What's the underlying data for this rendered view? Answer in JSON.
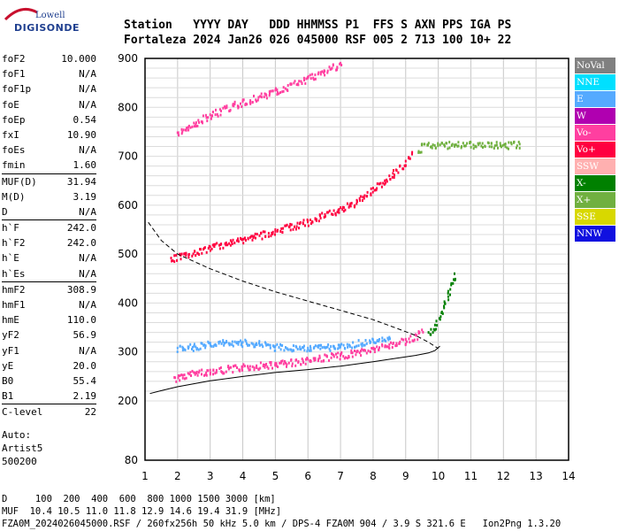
{
  "logo": {
    "line1": "Lowell",
    "line2": "DIGISONDE"
  },
  "header": {
    "row1": "Station   YYYY DAY   DDD HHMMSS P1  FFS S AXN PPS IGA PS",
    "row2": "Fortaleza 2024 Jan26 026 045000 RSF 005 2 713 100 10+ 22"
  },
  "params": [
    {
      "label": "foF2",
      "value": "10.000"
    },
    {
      "label": "foF1",
      "value": "N/A"
    },
    {
      "label": "foF1p",
      "value": "N/A"
    },
    {
      "label": "foE",
      "value": "N/A"
    },
    {
      "label": "foEp",
      "value": "0.54"
    },
    {
      "label": "fxI",
      "value": "10.90"
    },
    {
      "label": "foEs",
      "value": "N/A"
    },
    {
      "label": "fmin",
      "value": "1.60"
    },
    {
      "label": "MUF(D)",
      "value": "31.94"
    },
    {
      "label": "M(D)",
      "value": "3.19"
    },
    {
      "label": "D",
      "value": "N/A"
    },
    {
      "label": "h`F",
      "value": "242.0"
    },
    {
      "label": "h`F2",
      "value": "242.0"
    },
    {
      "label": "h`E",
      "value": "N/A"
    },
    {
      "label": "h`Es",
      "value": "N/A"
    },
    {
      "label": "hmF2",
      "value": "308.9"
    },
    {
      "label": "hmF1",
      "value": "N/A"
    },
    {
      "label": "hmE",
      "value": "110.0"
    },
    {
      "label": "yF2",
      "value": "56.9"
    },
    {
      "label": "yF1",
      "value": "N/A"
    },
    {
      "label": "yE",
      "value": "20.0"
    },
    {
      "label": "B0",
      "value": "55.4"
    },
    {
      "label": "B1",
      "value": "2.19"
    },
    {
      "label": "C-level",
      "value": "22"
    }
  ],
  "auto": {
    "line1": "Auto:",
    "line2": "Artist5",
    "line3": "500200"
  },
  "legend": [
    {
      "label": "NoVal",
      "color": "#808080"
    },
    {
      "label": "NNE",
      "color": "#00e0ff"
    },
    {
      "label": "E",
      "color": "#55aaff"
    },
    {
      "label": "W",
      "color": "#b000b0"
    },
    {
      "label": "Vo-",
      "color": "#ff3fa0"
    },
    {
      "label": "Vo+",
      "color": "#ff0040"
    },
    {
      "label": "SSW",
      "color": "#ffb0b0"
    },
    {
      "label": "X-",
      "color": "#008000"
    },
    {
      "label": "X+",
      "color": "#70b040"
    },
    {
      "label": "SSE",
      "color": "#d8d800"
    },
    {
      "label": "NNW",
      "color": "#1010e0"
    }
  ],
  "bottom": {
    "line1": "D     100  200  400  600  800 1000 1500 3000 [km]",
    "line2": "MUF  10.4 10.5 11.0 11.8 12.9 14.6 19.4 31.9 [MHz]",
    "line3": "FZA0M_2024026045000.RSF / 260fx256h 50 kHz 5.0 km / DPS-4 FZA0M 904 / 3.9 S 321.6 E   Ion2Png 1.3.20"
  },
  "chart_data": {
    "type": "scatter",
    "xlim": [
      1,
      14
    ],
    "ylim": [
      80,
      900
    ],
    "x_ticks": [
      "1",
      "2",
      "3",
      "4",
      "5",
      "6",
      "7",
      "8",
      "9",
      "10",
      "11",
      "12",
      "13",
      "14"
    ],
    "y_ticks": [
      "80",
      "200",
      "300",
      "400",
      "500",
      "600",
      "700",
      "800",
      "900"
    ],
    "grid": true,
    "dashed_curve": [
      [
        1.1,
        565
      ],
      [
        1.5,
        528
      ],
      [
        2,
        500
      ],
      [
        3,
        470
      ],
      [
        4,
        445
      ],
      [
        5,
        423
      ],
      [
        6,
        404
      ],
      [
        7,
        385
      ],
      [
        8,
        366
      ],
      [
        8.7,
        349
      ],
      [
        9.3,
        334
      ],
      [
        9.7,
        320
      ],
      [
        10,
        307
      ]
    ],
    "solid_curve": [
      [
        1.15,
        215
      ],
      [
        1.5,
        221
      ],
      [
        2,
        229
      ],
      [
        3,
        241
      ],
      [
        4,
        250
      ],
      [
        5,
        258
      ],
      [
        6,
        264
      ],
      [
        7,
        271
      ],
      [
        8,
        280
      ],
      [
        8.7,
        287
      ],
      [
        9.3,
        293
      ],
      [
        9.7,
        298
      ],
      [
        9.9,
        303
      ],
      [
        10.05,
        312
      ]
    ],
    "traces": [
      {
        "name": "Vo-",
        "color": "#ff3fa0",
        "points": [
          [
            1.9,
            248
          ],
          [
            2.5,
            258
          ],
          [
            3,
            263
          ],
          [
            4,
            270
          ],
          [
            5,
            277
          ],
          [
            6,
            285
          ],
          [
            7,
            295
          ],
          [
            7.5,
            300
          ],
          [
            8,
            307
          ],
          [
            8.5,
            315
          ],
          [
            9,
            325
          ],
          [
            9.3,
            335
          ],
          [
            9.5,
            345
          ]
        ]
      },
      {
        "name": "E",
        "color": "#55aaff",
        "points": [
          [
            2.0,
            308
          ],
          [
            2.5,
            312
          ],
          [
            3,
            318
          ],
          [
            3.5,
            322
          ],
          [
            4,
            320
          ],
          [
            4.5,
            318
          ],
          [
            5,
            312
          ],
          [
            6,
            308
          ],
          [
            7,
            313
          ],
          [
            8,
            325
          ],
          [
            8.5,
            330
          ]
        ]
      },
      {
        "name": "Vo+",
        "color": "#ff0040",
        "points": [
          [
            1.8,
            492
          ],
          [
            2.2,
            500
          ],
          [
            3,
            515
          ],
          [
            4,
            530
          ],
          [
            5,
            550
          ],
          [
            6,
            568
          ],
          [
            7,
            595
          ],
          [
            7.5,
            610
          ],
          [
            8,
            635
          ],
          [
            8.5,
            660
          ],
          [
            9,
            690
          ],
          [
            9.2,
            708
          ]
        ]
      },
      {
        "name": "Vo-",
        "color": "#ff3fa0",
        "points": [
          [
            2.0,
            748
          ],
          [
            2.5,
            768
          ],
          [
            3,
            785
          ],
          [
            3.5,
            800
          ],
          [
            4,
            812
          ],
          [
            5,
            835
          ],
          [
            6,
            860
          ],
          [
            6.5,
            875
          ],
          [
            7,
            890
          ]
        ]
      },
      {
        "name": "X-",
        "color": "#008000",
        "points": [
          [
            9.7,
            340
          ],
          [
            9.9,
            355
          ],
          [
            10.1,
            380
          ],
          [
            10.2,
            400
          ],
          [
            10.3,
            420
          ],
          [
            10.4,
            440
          ],
          [
            10.5,
            460
          ]
        ]
      },
      {
        "name": "X+",
        "color": "#70b040",
        "points": [
          [
            9.4,
            710
          ],
          [
            9.5,
            725
          ],
          [
            12.5,
            725
          ]
        ]
      }
    ]
  }
}
